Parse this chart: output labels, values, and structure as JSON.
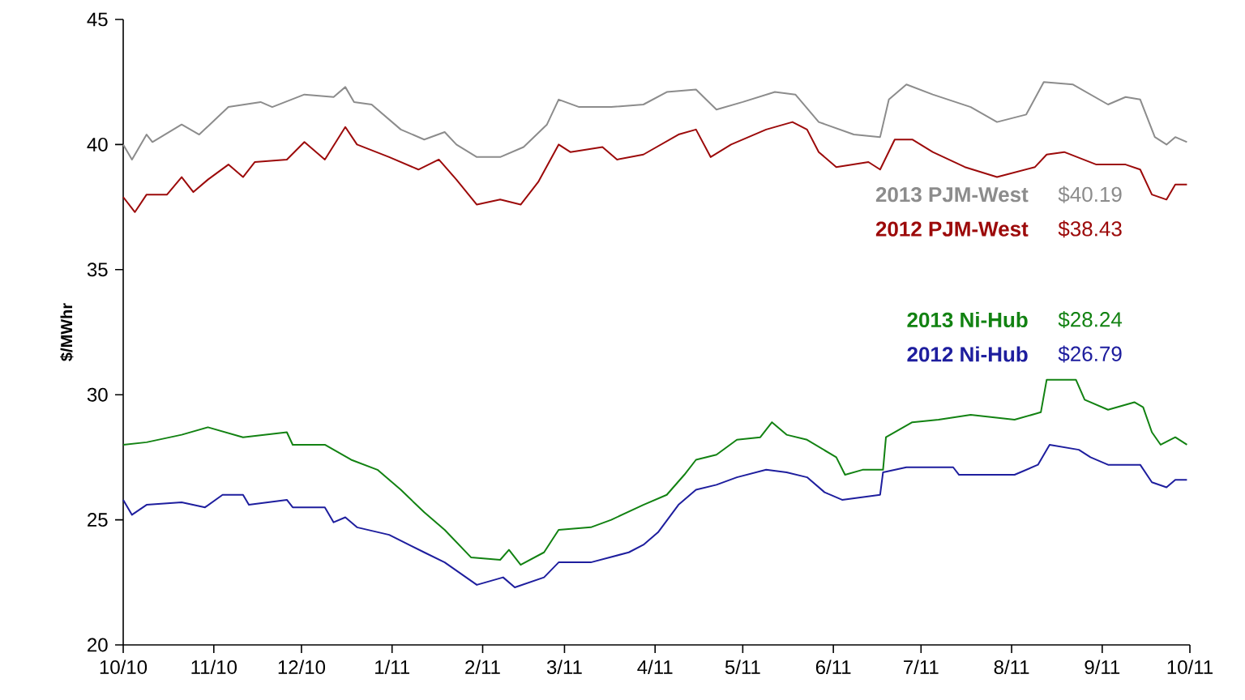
{
  "chart_data": {
    "type": "line",
    "ylabel": "$/MWhr",
    "xlim": [
      "2010-10-01",
      "2011-10-01"
    ],
    "ylim": [
      20,
      45
    ],
    "yticks": [
      20,
      25,
      30,
      35,
      40,
      45
    ],
    "xticks": [
      {
        "value": "2010-10",
        "label": "10/10"
      },
      {
        "value": "2010-11",
        "label": "11/10"
      },
      {
        "value": "2010-12",
        "label": "12/10"
      },
      {
        "value": "2011-01",
        "label": "1/11"
      },
      {
        "value": "2011-02",
        "label": "2/11"
      },
      {
        "value": "2011-03",
        "label": "3/11"
      },
      {
        "value": "2011-04",
        "label": "4/11"
      },
      {
        "value": "2011-05",
        "label": "5/11"
      },
      {
        "value": "2011-06",
        "label": "6/11"
      },
      {
        "value": "2011-07",
        "label": "7/11"
      },
      {
        "value": "2011-08",
        "label": "8/11"
      },
      {
        "value": "2011-09",
        "label": "9/11"
      },
      {
        "value": "2011-10",
        "label": "10/11"
      }
    ],
    "annotations": [
      "$40.19",
      "$38.43",
      "$28.24",
      "$26.79"
    ],
    "series": [
      {
        "name": "2013 PJM-West",
        "color": "#8c8c8c",
        "x": [
          "2010-10-01",
          "2010-10-04",
          "2010-10-09",
          "2010-10-11",
          "2010-10-21",
          "2010-10-27",
          "2010-11-06",
          "2010-11-17",
          "2010-11-21",
          "2010-12-02",
          "2010-12-12",
          "2010-12-16",
          "2010-12-19",
          "2010-12-25",
          "2011-01-04",
          "2011-01-12",
          "2011-01-19",
          "2011-01-23",
          "2011-01-30",
          "2011-02-07",
          "2011-02-15",
          "2011-02-23",
          "2011-02-27",
          "2011-03-06",
          "2011-03-17",
          "2011-03-28",
          "2011-04-05",
          "2011-04-15",
          "2011-04-22",
          "2011-05-01",
          "2011-05-12",
          "2011-05-19",
          "2011-05-27",
          "2011-06-08",
          "2011-06-17",
          "2011-06-20",
          "2011-06-26",
          "2011-07-05",
          "2011-07-18",
          "2011-07-27",
          "2011-08-06",
          "2011-08-12",
          "2011-08-22",
          "2011-09-03",
          "2011-09-09",
          "2011-09-14",
          "2011-09-19",
          "2011-09-23",
          "2011-09-26",
          "2011-09-30"
        ],
        "values": [
          40.0,
          39.4,
          40.4,
          40.1,
          40.8,
          40.4,
          41.5,
          41.7,
          41.5,
          42.0,
          41.9,
          42.3,
          41.7,
          41.6,
          40.6,
          40.2,
          40.5,
          40.0,
          39.5,
          39.5,
          39.9,
          40.8,
          41.8,
          41.5,
          41.5,
          41.6,
          42.1,
          42.2,
          41.4,
          41.7,
          42.1,
          42.0,
          40.9,
          40.4,
          40.3,
          41.8,
          42.4,
          42.0,
          41.5,
          40.9,
          41.2,
          42.5,
          42.4,
          41.6,
          41.9,
          41.8,
          40.3,
          40.0,
          40.3,
          40.1
        ]
      },
      {
        "name": "2012 PJM-West",
        "color": "#9c0a0a",
        "x": [
          "2010-10-01",
          "2010-10-05",
          "2010-10-09",
          "2010-10-16",
          "2010-10-21",
          "2010-10-25",
          "2010-10-30",
          "2010-11-06",
          "2010-11-11",
          "2010-11-15",
          "2010-11-26",
          "2010-12-02",
          "2010-12-09",
          "2010-12-16",
          "2010-12-20",
          "2010-12-31",
          "2011-01-10",
          "2011-01-17",
          "2011-01-23",
          "2011-01-30",
          "2011-02-07",
          "2011-02-14",
          "2011-02-20",
          "2011-02-27",
          "2011-03-03",
          "2011-03-14",
          "2011-03-19",
          "2011-03-28",
          "2011-04-09",
          "2011-04-15",
          "2011-04-20",
          "2011-04-27",
          "2011-05-09",
          "2011-05-18",
          "2011-05-23",
          "2011-05-27",
          "2011-06-02",
          "2011-06-13",
          "2011-06-17",
          "2011-06-22",
          "2011-06-28",
          "2011-07-05",
          "2011-07-16",
          "2011-07-27",
          "2011-08-09",
          "2011-08-13",
          "2011-08-19",
          "2011-08-30",
          "2011-09-09",
          "2011-09-14",
          "2011-09-18",
          "2011-09-23",
          "2011-09-26",
          "2011-09-30"
        ],
        "values": [
          37.9,
          37.3,
          38.0,
          38.0,
          38.7,
          38.1,
          38.6,
          39.2,
          38.7,
          39.3,
          39.4,
          40.1,
          39.4,
          40.7,
          40.0,
          39.5,
          39.0,
          39.4,
          38.6,
          37.6,
          37.8,
          37.6,
          38.5,
          40.0,
          39.7,
          39.9,
          39.4,
          39.6,
          40.4,
          40.6,
          39.5,
          40.0,
          40.6,
          40.9,
          40.6,
          39.7,
          39.1,
          39.3,
          39.0,
          40.2,
          40.2,
          39.7,
          39.1,
          38.7,
          39.1,
          39.6,
          39.7,
          39.2,
          39.2,
          39.0,
          38.0,
          37.8,
          38.4,
          38.4
        ]
      },
      {
        "name": "2013 Ni-Hub",
        "color": "#128212",
        "x": [
          "2010-10-01",
          "2010-10-09",
          "2010-10-21",
          "2010-10-30",
          "2010-11-11",
          "2010-11-26",
          "2010-11-28",
          "2010-12-09",
          "2010-12-18",
          "2010-12-27",
          "2011-01-04",
          "2011-01-12",
          "2011-01-19",
          "2011-01-28",
          "2011-02-07",
          "2011-02-10",
          "2011-02-14",
          "2011-02-22",
          "2011-02-27",
          "2011-03-10",
          "2011-03-17",
          "2011-03-28",
          "2011-04-05",
          "2011-04-11",
          "2011-04-15",
          "2011-04-22",
          "2011-04-29",
          "2011-05-07",
          "2011-05-11",
          "2011-05-16",
          "2011-05-23",
          "2011-06-02",
          "2011-06-05",
          "2011-06-11",
          "2011-06-18",
          "2011-06-19",
          "2011-06-28",
          "2011-07-07",
          "2011-07-18",
          "2011-08-02",
          "2011-08-11",
          "2011-08-13",
          "2011-08-23",
          "2011-08-26",
          "2011-09-03",
          "2011-09-12",
          "2011-09-15",
          "2011-09-18",
          "2011-09-21",
          "2011-09-26",
          "2011-09-30"
        ],
        "values": [
          28.0,
          28.1,
          28.4,
          28.7,
          28.3,
          28.5,
          28.0,
          28.0,
          27.4,
          27.0,
          26.2,
          25.3,
          24.6,
          23.5,
          23.4,
          23.8,
          23.2,
          23.7,
          24.6,
          24.7,
          25.0,
          25.6,
          26.0,
          26.8,
          27.4,
          27.6,
          28.2,
          28.3,
          28.9,
          28.4,
          28.2,
          27.5,
          26.8,
          27.0,
          27.0,
          28.3,
          28.9,
          29.0,
          29.2,
          29.0,
          29.3,
          30.6,
          30.6,
          29.8,
          29.4,
          29.7,
          29.5,
          28.5,
          28.0,
          28.3,
          28.0
        ]
      },
      {
        "name": "2012 Ni-Hub",
        "color": "#1e1e9e",
        "x": [
          "2010-10-01",
          "2010-10-04",
          "2010-10-09",
          "2010-10-21",
          "2010-10-29",
          "2010-11-04",
          "2010-11-11",
          "2010-11-13",
          "2010-11-26",
          "2010-11-28",
          "2010-12-09",
          "2010-12-12",
          "2010-12-16",
          "2010-12-20",
          "2010-12-31",
          "2011-01-12",
          "2011-01-19",
          "2011-01-30",
          "2011-02-08",
          "2011-02-12",
          "2011-02-22",
          "2011-02-27",
          "2011-03-10",
          "2011-03-23",
          "2011-03-28",
          "2011-04-02",
          "2011-04-09",
          "2011-04-15",
          "2011-04-22",
          "2011-04-29",
          "2011-05-09",
          "2011-05-16",
          "2011-05-23",
          "2011-05-29",
          "2011-06-04",
          "2011-06-17",
          "2011-06-18",
          "2011-06-26",
          "2011-07-12",
          "2011-07-14",
          "2011-08-02",
          "2011-08-10",
          "2011-08-14",
          "2011-08-24",
          "2011-08-28",
          "2011-09-03",
          "2011-09-14",
          "2011-09-18",
          "2011-09-23",
          "2011-09-26",
          "2011-09-30"
        ],
        "values": [
          25.8,
          25.2,
          25.6,
          25.7,
          25.5,
          26.0,
          26.0,
          25.6,
          25.8,
          25.5,
          25.5,
          24.9,
          25.1,
          24.7,
          24.4,
          23.7,
          23.3,
          22.4,
          22.7,
          22.3,
          22.7,
          23.3,
          23.3,
          23.7,
          24.0,
          24.5,
          25.6,
          26.2,
          26.4,
          26.7,
          27.0,
          26.9,
          26.7,
          26.1,
          25.8,
          26.0,
          26.9,
          27.1,
          27.1,
          26.8,
          26.8,
          27.2,
          28.0,
          27.8,
          27.5,
          27.2,
          27.2,
          26.5,
          26.3,
          26.6,
          26.6
        ]
      }
    ]
  }
}
